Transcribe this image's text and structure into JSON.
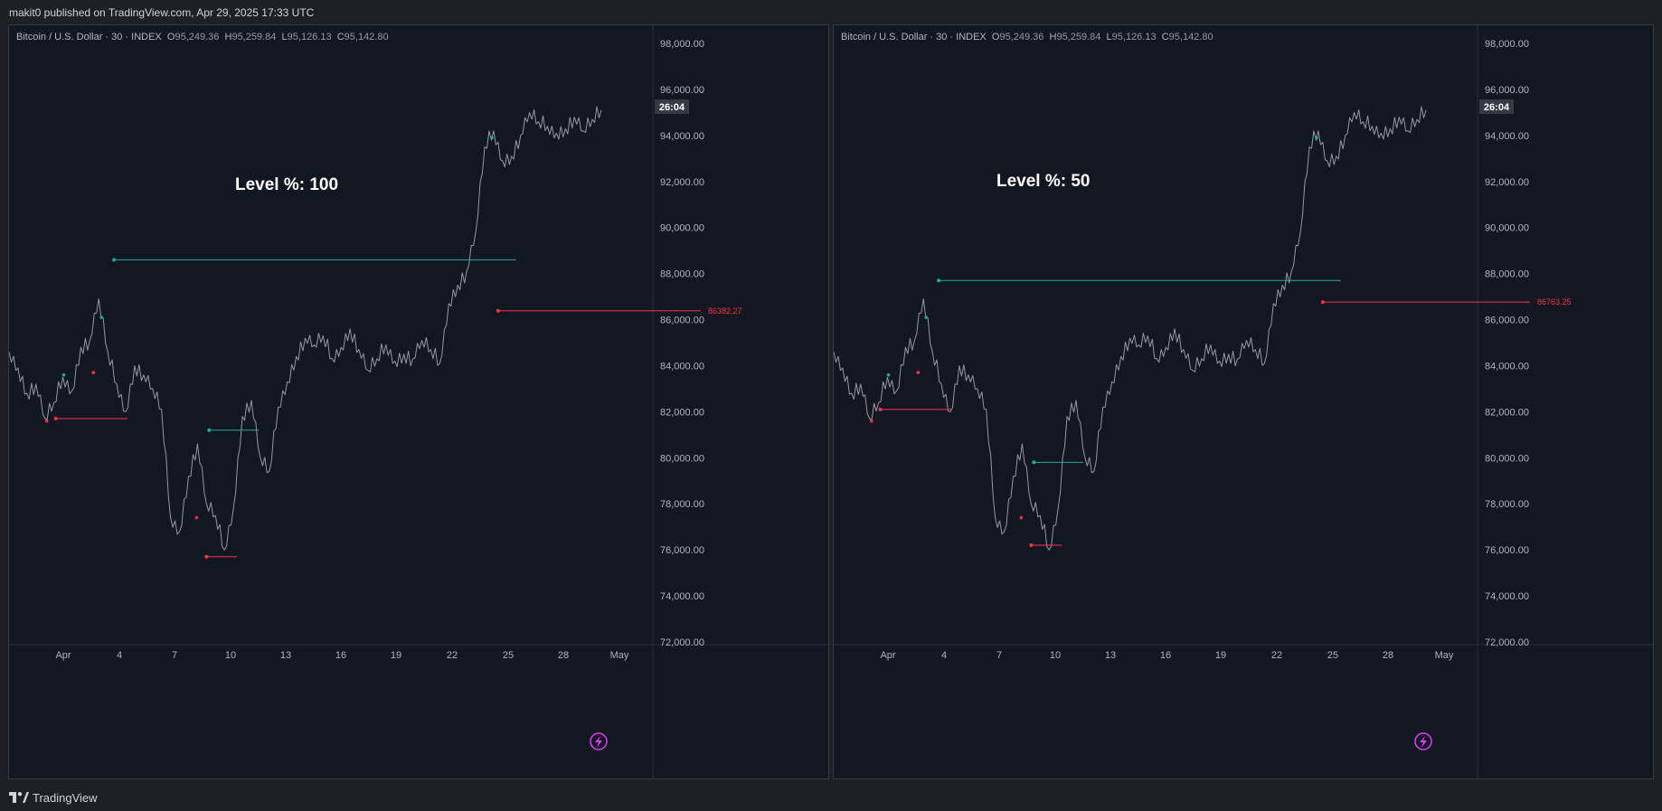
{
  "header": {
    "publish_line": "makit0 published on TradingView.com, Apr 29, 2025 17:33 UTC"
  },
  "footer": {
    "brand": "TradingView"
  },
  "chart_data": [
    {
      "type": "line",
      "symbol": "Bitcoin / U.S. Dollar · 30 · INDEX",
      "ohlc": {
        "O": "95,249.36",
        "H": "95,259.84",
        "L": "95,126.13",
        "C": "95,142.80"
      },
      "annotation": "Level %: 100",
      "countdown": "26:04",
      "ylim": [
        72000,
        98000
      ],
      "yticks": [
        "98,000.00",
        "96,000.00",
        "94,000.00",
        "92,000.00",
        "90,000.00",
        "88,000.00",
        "86,000.00",
        "84,000.00",
        "82,000.00",
        "80,000.00",
        "78,000.00",
        "76,000.00",
        "74,000.00",
        "72,000.00"
      ],
      "xticks": [
        "Apr",
        "4",
        "7",
        "10",
        "13",
        "16",
        "19",
        "22",
        "25",
        "28",
        "May"
      ],
      "series": [
        {
          "values": [
            [
              0,
              84600
            ],
            [
              1,
              83900
            ],
            [
              2,
              82800
            ],
            [
              3,
              83200
            ],
            [
              4,
              81700
            ],
            [
              5,
              82400
            ],
            [
              6,
              83500
            ],
            [
              7,
              82900
            ],
            [
              8,
              84800
            ],
            [
              9,
              85100
            ],
            [
              10,
              86900
            ],
            [
              11,
              84600
            ],
            [
              12,
              83200
            ],
            [
              13,
              82000
            ],
            [
              14,
              84000
            ],
            [
              15,
              83600
            ],
            [
              16,
              83000
            ],
            [
              17,
              82100
            ],
            [
              18,
              77400
            ],
            [
              19,
              76800
            ],
            [
              20,
              79200
            ],
            [
              21,
              80600
            ],
            [
              22,
              78000
            ],
            [
              23,
              77500
            ],
            [
              24,
              76000
            ],
            [
              25,
              77800
            ],
            [
              26,
              81800
            ],
            [
              27,
              82500
            ],
            [
              28,
              80000
            ],
            [
              29,
              79400
            ],
            [
              30,
              82200
            ],
            [
              31,
              83300
            ],
            [
              32,
              84400
            ],
            [
              33,
              85200
            ],
            [
              34,
              84900
            ],
            [
              35,
              85300
            ],
            [
              36,
              84300
            ],
            [
              37,
              84800
            ],
            [
              38,
              85600
            ],
            [
              39,
              84700
            ],
            [
              40,
              83800
            ],
            [
              41,
              84300
            ],
            [
              42,
              84900
            ],
            [
              43,
              84200
            ],
            [
              44,
              84500
            ],
            [
              45,
              84300
            ],
            [
              46,
              85100
            ],
            [
              47,
              84700
            ],
            [
              48,
              84100
            ],
            [
              49,
              86700
            ],
            [
              50,
              87500
            ],
            [
              51,
              88100
            ],
            [
              52,
              89800
            ],
            [
              53,
              93500
            ],
            [
              54,
              94200
            ],
            [
              55,
              92900
            ],
            [
              56,
              93100
            ],
            [
              57,
              94000
            ],
            [
              58,
              95000
            ],
            [
              59,
              94600
            ],
            [
              60,
              94400
            ],
            [
              61,
              94100
            ],
            [
              62,
              94300
            ],
            [
              63,
              94800
            ],
            [
              64,
              94200
            ],
            [
              65,
              94700
            ],
            [
              66,
              95100
            ]
          ]
        }
      ],
      "levels": [
        {
          "type": "resistance",
          "value": 88600,
          "label": ""
        },
        {
          "type": "support",
          "value": 86382.27,
          "label": "86382.27"
        },
        {
          "type": "support",
          "value": 81700,
          "label": ""
        },
        {
          "type": "resistance",
          "value": 81200,
          "label": ""
        },
        {
          "type": "support",
          "value": 75700,
          "label": ""
        }
      ]
    },
    {
      "type": "line",
      "symbol": "Bitcoin / U.S. Dollar · 30 · INDEX",
      "ohlc": {
        "O": "95,249.36",
        "H": "95,259.84",
        "L": "95,126.13",
        "C": "95,142.80"
      },
      "annotation": "Level %: 50",
      "countdown": "26:04",
      "ylim": [
        72000,
        98000
      ],
      "yticks": [
        "98,000.00",
        "96,000.00",
        "94,000.00",
        "92,000.00",
        "90,000.00",
        "88,000.00",
        "86,000.00",
        "84,000.00",
        "82,000.00",
        "80,000.00",
        "78,000.00",
        "76,000.00",
        "74,000.00",
        "72,000.00"
      ],
      "xticks": [
        "Apr",
        "4",
        "7",
        "10",
        "13",
        "16",
        "19",
        "22",
        "25",
        "28",
        "May"
      ],
      "series": [
        {
          "values": [
            [
              0,
              84600
            ],
            [
              1,
              83900
            ],
            [
              2,
              82800
            ],
            [
              3,
              83200
            ],
            [
              4,
              81700
            ],
            [
              5,
              82400
            ],
            [
              6,
              83500
            ],
            [
              7,
              82900
            ],
            [
              8,
              84800
            ],
            [
              9,
              85100
            ],
            [
              10,
              86900
            ],
            [
              11,
              84600
            ],
            [
              12,
              83200
            ],
            [
              13,
              82000
            ],
            [
              14,
              84000
            ],
            [
              15,
              83600
            ],
            [
              16,
              83000
            ],
            [
              17,
              82100
            ],
            [
              18,
              77400
            ],
            [
              19,
              76800
            ],
            [
              20,
              79200
            ],
            [
              21,
              80600
            ],
            [
              22,
              78000
            ],
            [
              23,
              77500
            ],
            [
              24,
              76000
            ],
            [
              25,
              77800
            ],
            [
              26,
              81800
            ],
            [
              27,
              82500
            ],
            [
              28,
              80000
            ],
            [
              29,
              79400
            ],
            [
              30,
              82200
            ],
            [
              31,
              83300
            ],
            [
              32,
              84400
            ],
            [
              33,
              85200
            ],
            [
              34,
              84900
            ],
            [
              35,
              85300
            ],
            [
              36,
              84300
            ],
            [
              37,
              84800
            ],
            [
              38,
              85600
            ],
            [
              39,
              84700
            ],
            [
              40,
              83800
            ],
            [
              41,
              84300
            ],
            [
              42,
              84900
            ],
            [
              43,
              84200
            ],
            [
              44,
              84500
            ],
            [
              45,
              84300
            ],
            [
              46,
              85100
            ],
            [
              47,
              84700
            ],
            [
              48,
              84100
            ],
            [
              49,
              86700
            ],
            [
              50,
              87500
            ],
            [
              51,
              88100
            ],
            [
              52,
              89800
            ],
            [
              53,
              93500
            ],
            [
              54,
              94200
            ],
            [
              55,
              92900
            ],
            [
              56,
              93100
            ],
            [
              57,
              94000
            ],
            [
              58,
              95000
            ],
            [
              59,
              94600
            ],
            [
              60,
              94400
            ],
            [
              61,
              94100
            ],
            [
              62,
              94300
            ],
            [
              63,
              94800
            ],
            [
              64,
              94200
            ],
            [
              65,
              94700
            ],
            [
              66,
              95100
            ]
          ]
        }
      ],
      "levels": [
        {
          "type": "resistance",
          "value": 87700,
          "label": ""
        },
        {
          "type": "support",
          "value": 86763.25,
          "label": "86763.25"
        },
        {
          "type": "support",
          "value": 82100,
          "label": ""
        },
        {
          "type": "resistance",
          "value": 79800,
          "label": ""
        },
        {
          "type": "support",
          "value": 76200,
          "label": ""
        }
      ]
    }
  ],
  "colors": {
    "support": "#f23645",
    "resistance": "#22ab94",
    "price": "#9598a1",
    "grid": "#363a45",
    "accent": "#e040fb"
  },
  "icons": {
    "replay": "lightning-icon",
    "logo": "tradingview-logo-icon"
  }
}
